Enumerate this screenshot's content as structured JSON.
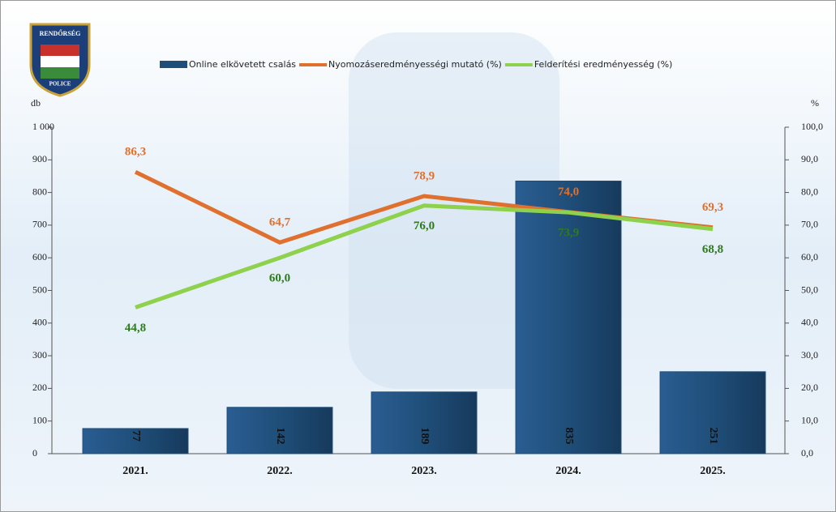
{
  "logo": {
    "top": "RENDŐRSÉG",
    "bottom": "POLICE"
  },
  "chart_data": {
    "type": "bar",
    "categories": [
      "2021.",
      "2022.",
      "2023.",
      "2024.",
      "2025."
    ],
    "y_label": "db",
    "y2_label": "%",
    "ylim": [
      0,
      1000
    ],
    "yticks": [
      0,
      100,
      200,
      300,
      400,
      500,
      600,
      700,
      800,
      900,
      {
        "value": 1000,
        "label": "1 000"
      }
    ],
    "y2lim": [
      0,
      100
    ],
    "y2ticks": [
      {
        "value": 0,
        "label": "0,0"
      },
      {
        "value": 10,
        "label": "10,0"
      },
      {
        "value": 20,
        "label": "20,0"
      },
      {
        "value": 30,
        "label": "30,0"
      },
      {
        "value": 40,
        "label": "40,0"
      },
      {
        "value": 50,
        "label": "50,0"
      },
      {
        "value": 60,
        "label": "60,0"
      },
      {
        "value": 70,
        "label": "70,0"
      },
      {
        "value": 80,
        "label": "80,0"
      },
      {
        "value": 90,
        "label": "90,0"
      },
      {
        "value": 100,
        "label": "100,0"
      }
    ],
    "legend": "top",
    "series": [
      {
        "name": "Online elkövetett csalás",
        "type": "bar",
        "color": "#1f4e79",
        "values": [
          77,
          142,
          189,
          835,
          251
        ]
      },
      {
        "name": "Nyomozáseredményességi mutató (%)",
        "type": "line",
        "axis": "y2",
        "color": "#e0702e",
        "values": [
          86.3,
          64.7,
          78.9,
          74.0,
          69.3
        ],
        "value_labels": [
          "86,3",
          "64,7",
          "78,9",
          "74,0",
          "69,3"
        ]
      },
      {
        "name": "Felderítési eredményesség (%)",
        "type": "line",
        "axis": "y2",
        "color": "#8ed14c",
        "values": [
          44.8,
          60.0,
          76.0,
          73.9,
          68.8
        ],
        "value_labels": [
          "44,8",
          "60,0",
          "76,0",
          "73,9",
          "68,8"
        ]
      }
    ]
  }
}
